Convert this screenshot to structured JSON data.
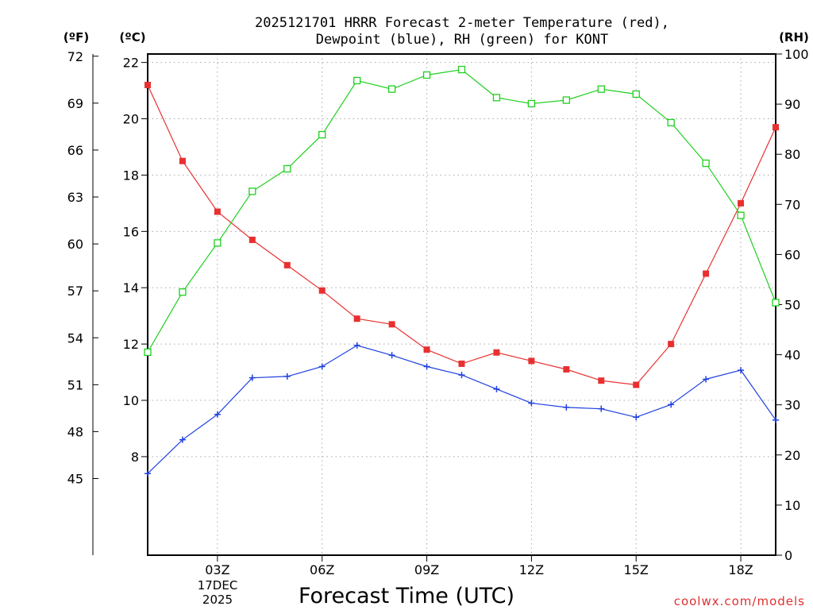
{
  "chart_data": {
    "type": "line",
    "title_line1": "2025121701 HRRR Forecast 2-meter Temperature (red),",
    "title_line2": "Dewpoint (blue), RH (green) for KONT",
    "xlabel": "Forecast Time (UTC)",
    "credit": "coolwx.com/models",
    "date_label_line1": "17DEC",
    "date_label_line2": "2025",
    "unit_f": "(ºF)",
    "unit_c": "(ºC)",
    "unit_rh": "(RH)",
    "x_hours": [
      1,
      2,
      3,
      4,
      5,
      6,
      7,
      8,
      9,
      10,
      11,
      12,
      13,
      14,
      15,
      16,
      17,
      18,
      19
    ],
    "xlim": [
      1,
      19
    ],
    "x_ticks": [
      {
        "hour": 3,
        "label": "03Z"
      },
      {
        "hour": 6,
        "label": "06Z"
      },
      {
        "hour": 9,
        "label": "09Z"
      },
      {
        "hour": 12,
        "label": "12Z"
      },
      {
        "hour": 15,
        "label": "15Z"
      },
      {
        "hour": 18,
        "label": "18Z"
      }
    ],
    "ylim_c": [
      4.5,
      22.3
    ],
    "y_ticks_c": [
      "8",
      "10",
      "12",
      "14",
      "16",
      "18",
      "20",
      "22"
    ],
    "y_ticks_f": [
      "45",
      "48",
      "51",
      "54",
      "57",
      "60",
      "63",
      "66",
      "69",
      "72"
    ],
    "y_ticks_rh": [
      "0",
      "10",
      "20",
      "30",
      "40",
      "50",
      "60",
      "70",
      "80",
      "90",
      "100"
    ],
    "ylim_rh": [
      0,
      100
    ],
    "series": [
      {
        "name": "Temperature",
        "unit": "C",
        "color": "#e83030",
        "marker": "filled-square",
        "values": [
          21.2,
          18.5,
          16.7,
          15.7,
          14.8,
          13.9,
          12.9,
          12.7,
          11.8,
          11.3,
          11.7,
          11.4,
          11.1,
          10.7,
          10.55,
          12.0,
          14.5,
          17.0,
          19.7
        ]
      },
      {
        "name": "Dewpoint",
        "unit": "C",
        "color": "#2040e0",
        "marker": "plus",
        "values": [
          7.4,
          8.6,
          9.5,
          10.8,
          10.85,
          11.2,
          11.95,
          11.6,
          11.2,
          10.9,
          10.4,
          9.9,
          9.75,
          9.7,
          9.4,
          9.85,
          10.75,
          11.07,
          9.3
        ]
      },
      {
        "name": "RH",
        "unit": "%",
        "color": "#20d020",
        "marker": "open-square",
        "values": [
          40.5,
          52.5,
          62.3,
          72.6,
          77.1,
          83.9,
          94.7,
          93.0,
          95.8,
          96.9,
          91.3,
          90.1,
          90.8,
          93.0,
          92.0,
          86.3,
          78.2,
          67.8,
          50.4
        ]
      }
    ]
  }
}
